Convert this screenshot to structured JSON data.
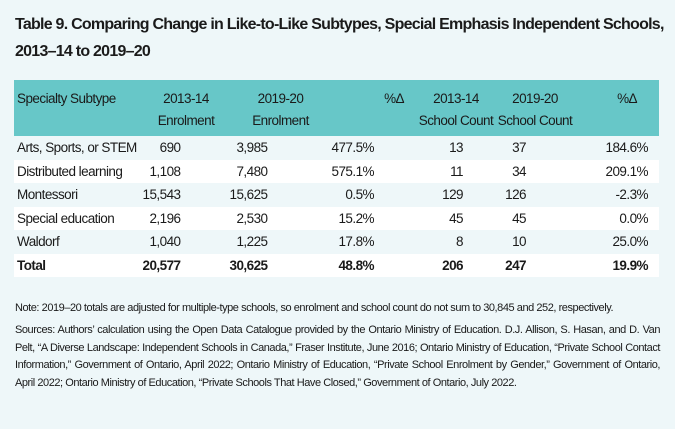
{
  "title": "Table 9. Comparing Change in Like-to-Like Subtypes, Special Emphasis Independent Schools, 2013–14 to 2019–20",
  "table": {
    "headers": [
      {
        "line1": "Specialty Subtype",
        "line2": ""
      },
      {
        "line1": "2013-14",
        "line2": "Enrolment"
      },
      {
        "line1": "2019-20",
        "line2": "Enrolment"
      },
      {
        "line1": "%Δ",
        "line2": ""
      },
      {
        "line1": "2013-14",
        "line2": "School Count"
      },
      {
        "line1": "2019-20",
        "line2": "School Count"
      },
      {
        "line1": "%Δ",
        "line2": ""
      }
    ],
    "rows": [
      [
        "Arts, Sports, or STEM",
        "690",
        "3,985",
        "477.5%",
        "13",
        "37",
        "184.6%"
      ],
      [
        "Distributed learning",
        "1,108",
        "7,480",
        "575.1%",
        "11",
        "34",
        "209.1%"
      ],
      [
        "Montessori",
        "15,543",
        "15,625",
        "0.5%",
        "129",
        "126",
        "-2.3%"
      ],
      [
        "Special education",
        "2,196",
        "2,530",
        "15.2%",
        "45",
        "45",
        "0.0%"
      ],
      [
        "Waldorf",
        "1,040",
        "1,225",
        "17.8%",
        "8",
        "10",
        "25.0%"
      ],
      [
        "Total",
        "20,577",
        "30,625",
        "48.8%",
        "206",
        "247",
        "19.9%"
      ]
    ]
  },
  "note": "Note: 2019–20 totals are adjusted for multiple-type schools, so enrolment and school count do not sum to 30,845 and 252, respectively.",
  "sources": "Sources: Authors’ calculation using the Open Data Catalogue provided by the Ontario Ministry of Education. D.J. Allison, S. Hasan, and D. Van Pelt, “A Diverse Landscape: Independent Schools in Canada,” Fraser Institute, June 2016; Ontario Ministry of Education, “Private School Contact Information,” Government of Ontario, April 2022; Ontario Ministry of Education, “Private School Enrolment by Gender,” Government of Ontario, April 2022; Ontario Ministry of Education, “Private Schools That Have Closed,” Government of Ontario, July 2022.",
  "colors": {
    "header_bg": "#67c7c8",
    "page_bg": "#eef7f9",
    "stripe": "#ffffff"
  }
}
